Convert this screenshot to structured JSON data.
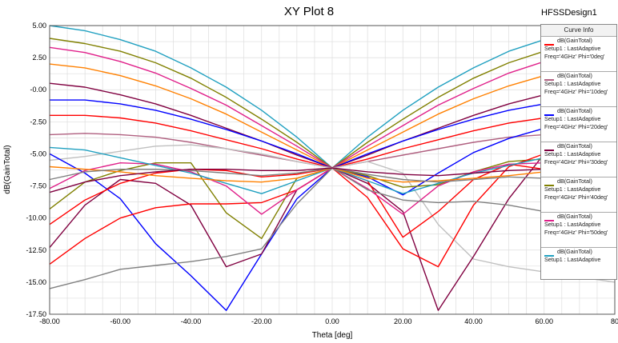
{
  "header": {
    "title": "XY Plot 8",
    "design_name": "HFSSDesign1"
  },
  "legend": {
    "header": "Curve Info",
    "entries": [
      {
        "line1": "dB(GainTotal)",
        "line2": "Setup1 : LastAdaptive",
        "line3": "Freq='4GHz' Phi='0deg'",
        "color": "#ff0000"
      },
      {
        "line1": "dB(GainTotal)",
        "line2": "Setup1 : LastAdaptive",
        "line3": "Freq='4GHz' Phi='10deg'",
        "color": "#b06080"
      },
      {
        "line1": "dB(GainTotal)",
        "line2": "Setup1 : LastAdaptive",
        "line3": "Freq='4GHz' Phi='20deg'",
        "color": "#0000ff"
      },
      {
        "line1": "dB(GainTotal)",
        "line2": "Setup1 : LastAdaptive",
        "line3": "Freq='4GHz' Phi='30deg'",
        "color": "#800040"
      },
      {
        "line1": "dB(GainTotal)",
        "line2": "Setup1 : LastAdaptive",
        "line3": "Freq='4GHz' Phi='40deg'",
        "color": "#808000"
      },
      {
        "line1": "dB(GainTotal)",
        "line2": "Setup1 : LastAdaptive",
        "line3": "Freq='4GHz' Phi='50deg'",
        "color": "#e0208a"
      },
      {
        "line1": "dB(GainTotal)",
        "line2": "Setup1 : LastAdaptive",
        "line3": "",
        "color": "#20a0c0"
      }
    ]
  },
  "chart_data": {
    "type": "line",
    "title": "XY Plot 8",
    "xlabel": "Theta [deg]",
    "ylabel": "dB(GainTotal)",
    "xlim": [
      -80,
      80
    ],
    "ylim": [
      -17.5,
      5
    ],
    "grid": true,
    "legend_position": "right",
    "xticks": [
      -80,
      -60,
      -40,
      -20,
      0,
      20,
      40,
      60,
      80
    ],
    "xtick_labels": [
      "-80.00",
      "-60.00",
      "-40.00",
      "-20.00",
      "0.00",
      "20.00",
      "40.00",
      "60.00",
      "80"
    ],
    "yticks": [
      5,
      2.5,
      0,
      -2.5,
      -5,
      -7.5,
      -10,
      -12.5,
      -15,
      -17.5
    ],
    "ytick_labels": [
      "5.00",
      "2.50",
      "-0.00",
      "-2.50",
      "-5.00",
      "-7.50",
      "-10.00",
      "-12.50",
      "-15.00",
      "-17.50"
    ],
    "x": [
      -80,
      -70,
      -60,
      -50,
      -40,
      -30,
      -20,
      -10,
      0,
      10,
      20,
      30,
      40,
      50,
      60,
      70,
      80
    ],
    "series": [
      {
        "color": "#20a0c0",
        "values": [
          5.0,
          4.6,
          3.9,
          3.0,
          1.7,
          0.2,
          -1.6,
          -3.7,
          -6.1,
          -3.7,
          -1.6,
          0.2,
          1.7,
          3.0,
          3.9,
          4.6,
          5.0
        ]
      },
      {
        "color": "#808000",
        "values": [
          4.0,
          3.6,
          3.0,
          2.1,
          0.9,
          -0.6,
          -2.3,
          -4.1,
          -6.1,
          -4.1,
          -2.3,
          -0.6,
          0.9,
          2.1,
          3.0,
          3.6,
          4.0
        ]
      },
      {
        "color": "#e0208a",
        "values": [
          3.3,
          2.9,
          2.2,
          1.3,
          0.1,
          -1.2,
          -2.8,
          -4.4,
          -6.1,
          -4.4,
          -2.8,
          -1.2,
          0.1,
          1.3,
          2.2,
          2.9,
          3.3
        ]
      },
      {
        "color": "#ff8000",
        "values": [
          2.0,
          1.7,
          1.1,
          0.3,
          -0.7,
          -1.9,
          -3.3,
          -4.7,
          -6.1,
          -4.7,
          -3.3,
          -1.9,
          -0.7,
          0.3,
          1.1,
          1.7,
          2.0
        ]
      },
      {
        "color": "#800040",
        "values": [
          0.5,
          0.2,
          -0.4,
          -1.1,
          -2.0,
          -3.0,
          -4.0,
          -5.1,
          -6.1,
          -5.1,
          -4.0,
          -3.0,
          -2.0,
          -1.1,
          -0.4,
          0.2,
          0.5
        ]
      },
      {
        "color": "#0000ff",
        "values": [
          -0.8,
          -0.8,
          -1.1,
          -1.6,
          -2.3,
          -3.1,
          -4.0,
          -5.0,
          -6.1,
          -5.0,
          -4.0,
          -3.1,
          -2.3,
          -1.6,
          -1.1,
          -0.8,
          -0.8
        ]
      },
      {
        "color": "#ff0000",
        "values": [
          -2.0,
          -2.0,
          -2.2,
          -2.6,
          -3.2,
          -3.9,
          -4.6,
          -5.4,
          -6.1,
          -5.4,
          -4.6,
          -3.9,
          -3.2,
          -2.6,
          -2.2,
          -2.0,
          -2.0
        ]
      },
      {
        "color": "#b06080",
        "values": [
          -3.5,
          -3.4,
          -3.5,
          -3.7,
          -4.1,
          -4.6,
          -5.1,
          -5.6,
          -6.1,
          -5.6,
          -5.1,
          -4.6,
          -4.1,
          -3.7,
          -3.5,
          -3.4,
          -3.5
        ]
      },
      {
        "color": "#c0c0c0",
        "values": [
          -5.5,
          -5.2,
          -4.8,
          -4.4,
          -4.3,
          -4.6,
          -5.0,
          -5.6,
          -6.1,
          -5.6,
          -6.5,
          -10.5,
          -13.2,
          -13.8,
          -14.2,
          -14.6,
          -15.0
        ]
      },
      {
        "color": "#0000ff",
        "values": [
          -5.0,
          -6.5,
          -8.5,
          -12.0,
          -14.5,
          -17.2,
          -12.8,
          -8.5,
          -6.1,
          -6.8,
          -8.2,
          -6.5,
          -4.9,
          -3.8,
          -3.0,
          -2.6,
          -2.3
        ]
      },
      {
        "color": "#800040",
        "values": [
          -12.3,
          -9.0,
          -7.0,
          -7.3,
          -9.0,
          -13.8,
          -12.8,
          -7.8,
          -6.1,
          -7.3,
          -9.5,
          -17.2,
          -13.0,
          -8.5,
          -5.0,
          -3.5,
          -2.5
        ]
      },
      {
        "color": "#808000",
        "values": [
          -9.3,
          -7.2,
          -6.3,
          -5.7,
          -5.7,
          -9.6,
          -11.6,
          -6.9,
          -6.1,
          -6.7,
          -7.6,
          -7.4,
          -6.4,
          -5.6,
          -5.4,
          -5.6,
          -6.0
        ]
      },
      {
        "color": "#ff0000",
        "values": [
          -13.6,
          -11.6,
          -10.0,
          -9.2,
          -8.9,
          -8.9,
          -8.8,
          -7.8,
          -6.1,
          -8.4,
          -12.4,
          -13.8,
          -9.0,
          -6.0,
          -5.0,
          -4.8,
          -5.0
        ]
      },
      {
        "color": "#ff0000",
        "values": [
          -10.5,
          -8.6,
          -7.3,
          -6.5,
          -6.2,
          -6.3,
          -6.8,
          -6.6,
          -6.1,
          -7.1,
          -11.5,
          -9.5,
          -7.0,
          -5.8,
          -6.2,
          -6.8,
          -7.5
        ]
      },
      {
        "color": "#e0208a",
        "values": [
          -7.7,
          -6.3,
          -5.7,
          -5.8,
          -6.4,
          -7.5,
          -9.7,
          -7.8,
          -6.1,
          -7.7,
          -9.7,
          -7.5,
          -6.4,
          -5.8,
          -5.7,
          -6.3,
          -7.7
        ]
      },
      {
        "color": "#20a0c0",
        "values": [
          -4.5,
          -4.7,
          -5.3,
          -5.9,
          -6.5,
          -7.3,
          -8.1,
          -7.1,
          -6.1,
          -7.1,
          -8.1,
          -7.3,
          -6.5,
          -5.9,
          -5.3,
          -4.7,
          -4.5
        ]
      },
      {
        "color": "#ff8000",
        "values": [
          -6.0,
          -6.2,
          -6.4,
          -6.7,
          -6.9,
          -7.1,
          -7.2,
          -6.9,
          -6.1,
          -6.9,
          -7.2,
          -7.1,
          -6.9,
          -6.7,
          -6.4,
          -6.2,
          -6.0
        ]
      },
      {
        "color": "#808080",
        "values": [
          -15.5,
          -14.8,
          -14.0,
          -13.7,
          -13.4,
          -13.0,
          -12.4,
          -8.9,
          -6.1,
          -7.8,
          -8.6,
          -8.8,
          -8.7,
          -9.0,
          -9.5,
          -10.5,
          -11.0
        ]
      },
      {
        "color": "#808080",
        "values": [
          -7.0,
          -6.4,
          -6.2,
          -6.2,
          -6.3,
          -6.5,
          -6.7,
          -6.5,
          -6.1,
          -6.6,
          -7.0,
          -7.2,
          -7.0,
          -6.8,
          -6.9,
          -7.5,
          -8.1
        ]
      },
      {
        "color": "#800040",
        "values": [
          -8.0,
          -7.2,
          -6.7,
          -6.4,
          -6.2,
          -6.2,
          -6.3,
          -6.3,
          -6.1,
          -6.4,
          -6.6,
          -6.7,
          -6.5,
          -6.3,
          -6.2,
          -6.5,
          -6.9
        ]
      }
    ]
  }
}
